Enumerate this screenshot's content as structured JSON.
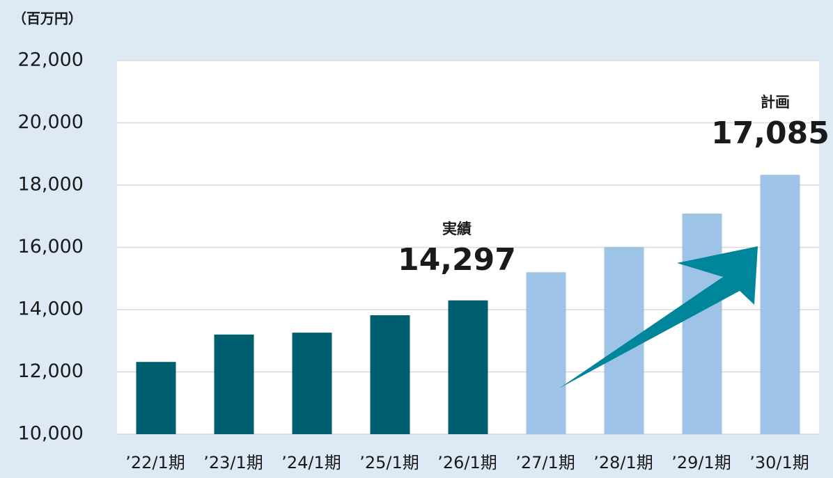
{
  "chart_data": {
    "type": "bar",
    "unit_label": "（百万円）",
    "categories": [
      "’22/1期",
      "’23/1期",
      "’24/1期",
      "’25/1期",
      "’26/1期",
      "’27/1期",
      "’28/1期",
      "’29/1期",
      "’30/1期"
    ],
    "values": [
      12320,
      13200,
      13260,
      13820,
      14297,
      15200,
      16010,
      17085,
      18330
    ],
    "colors": [
      "#005f6e",
      "#005f6e",
      "#005f6e",
      "#005f6e",
      "#005f6e",
      "#9dc3e6",
      "#9dc3e6",
      "#9dc3e6",
      "#9dc3e6"
    ],
    "ylim": [
      10000,
      22000
    ],
    "yticks": [
      {
        "value": 10000,
        "label": "10,000"
      },
      {
        "value": 12000,
        "label": "12,000"
      },
      {
        "value": 14000,
        "label": "14,000"
      },
      {
        "value": 16000,
        "label": "16,000"
      },
      {
        "value": 18000,
        "label": "18,000"
      },
      {
        "value": 20000,
        "label": "20,000"
      },
      {
        "value": 22000,
        "label": "22,000"
      }
    ],
    "grid": true,
    "annotations": [
      {
        "label": "実績",
        "text": "14,297"
      },
      {
        "label": "計画",
        "text": "17,085"
      }
    ]
  }
}
